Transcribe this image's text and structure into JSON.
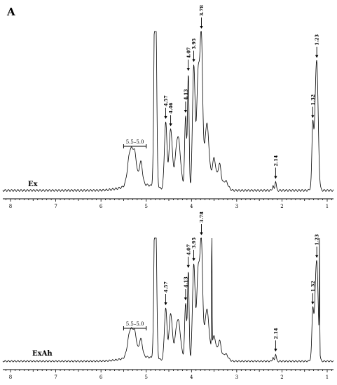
{
  "figure": {
    "panel_label": "A"
  },
  "chart_data": [
    {
      "type": "line",
      "series_label": "Ex",
      "xlim": [
        8.2,
        0.9
      ],
      "x_ticks": [
        "8",
        "7",
        "6",
        "5",
        "4",
        "3",
        "2",
        "1"
      ],
      "tick_values": [
        8,
        7,
        6,
        5,
        4,
        3,
        2,
        1
      ],
      "grid": false,
      "x_axis_reversed": true,
      "range_annotation": {
        "label": "5.5–5.0",
        "from": 5.5,
        "to": 5.0
      },
      "peak_annotations": [
        {
          "label": "4.57",
          "x": 4.57
        },
        {
          "label": "4.46",
          "x": 4.46
        },
        {
          "label": "4.13",
          "x": 4.13
        },
        {
          "label": "4.07",
          "x": 4.07
        },
        {
          "label": "3.95",
          "x": 3.95
        },
        {
          "label": "3.78",
          "x": 3.78
        },
        {
          "label": "2.14",
          "x": 2.14
        },
        {
          "label": "1.32",
          "x": 1.32
        },
        {
          "label": "1.23",
          "x": 1.23
        }
      ]
    },
    {
      "type": "line",
      "series_label": "ExAh",
      "xlim": [
        8.2,
        0.9
      ],
      "x_ticks": [
        "8",
        "7",
        "6",
        "5",
        "4",
        "3",
        "2",
        "1"
      ],
      "tick_values": [
        8,
        7,
        6,
        5,
        4,
        3,
        2,
        1
      ],
      "grid": false,
      "x_axis_reversed": true,
      "range_annotation": {
        "label": "5.5–5.0",
        "from": 5.5,
        "to": 5.0
      },
      "peak_annotations": [
        {
          "label": "4.57",
          "x": 4.57
        },
        {
          "label": "4.13",
          "x": 4.13
        },
        {
          "label": "4.07",
          "x": 4.07
        },
        {
          "label": "3.95",
          "x": 3.95
        },
        {
          "label": "3.78",
          "x": 3.78
        },
        {
          "label": "2.14",
          "x": 2.14
        },
        {
          "label": "1.32",
          "x": 1.32
        },
        {
          "label": "1.23",
          "x": 1.23
        }
      ]
    }
  ]
}
